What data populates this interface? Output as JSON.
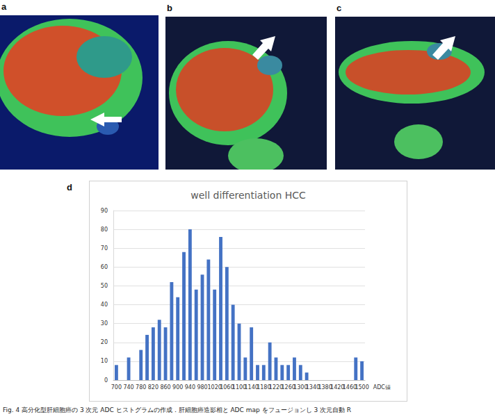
{
  "figure": {
    "panels": [
      {
        "label": "a"
      },
      {
        "label": "b"
      },
      {
        "label": "c"
      },
      {
        "label": "d"
      }
    ],
    "caption": "Fig. 4  高分化型肝細胞癌の 3 次元 ADC ヒストグラムの作成．肝細胞癌造影相と ADC map をフュージョンし 3 次元自動 R"
  },
  "chart_data": {
    "type": "bar",
    "title": "well differentiation HCC",
    "x_label": "ADC値",
    "categories": [
      "700",
      null,
      "740",
      null,
      "780",
      null,
      "820",
      null,
      "860",
      null,
      "900",
      null,
      "940",
      null,
      "980",
      null,
      "1020",
      null,
      "1060",
      null,
      "1100",
      null,
      "1140",
      null,
      "1180",
      null,
      "1220",
      null,
      "1260",
      null,
      "1300",
      null,
      "1340",
      null,
      "1380",
      null,
      "1420",
      null,
      "1460",
      null,
      "1500"
    ],
    "values": [
      8,
      0,
      12,
      0,
      16,
      24,
      28,
      32,
      28,
      52,
      44,
      68,
      80,
      48,
      56,
      64,
      48,
      76,
      60,
      40,
      30,
      12,
      28,
      8,
      8,
      20,
      12,
      8,
      8,
      12,
      8,
      4,
      0,
      0,
      0,
      0,
      0,
      0,
      0,
      12,
      10
    ],
    "color": "#4472c4",
    "ylim": [
      0,
      90
    ],
    "yticks": [
      0,
      10,
      20,
      30,
      40,
      50,
      60,
      70,
      80,
      90
    ],
    "grid": true
  }
}
